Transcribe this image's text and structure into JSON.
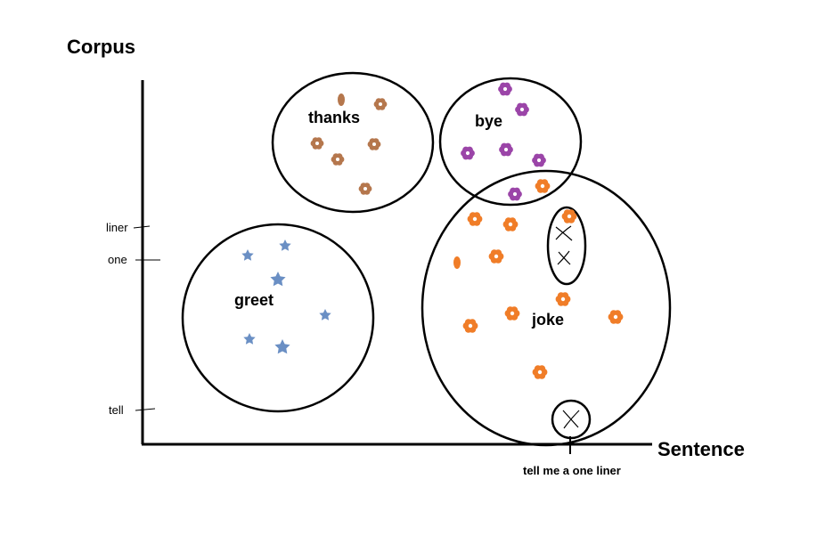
{
  "diagram": {
    "y_axis_title": "Corpus",
    "x_axis_title": "Sentence",
    "y_tick_labels": [
      "liner",
      "one",
      "tell"
    ],
    "x_query_label": "tell me a one liner",
    "clusters": [
      {
        "name": "thanks",
        "label": "thanks",
        "color": "#b5774d",
        "marker": "flower-icon"
      },
      {
        "name": "bye",
        "label": "bye",
        "color": "#9b45a8",
        "marker": "flower-icon"
      },
      {
        "name": "greet",
        "label": "greet",
        "color": "#6a8fc4",
        "marker": "star-icon"
      },
      {
        "name": "joke",
        "label": "joke",
        "color": "#f07d28",
        "marker": "flower-icon"
      }
    ],
    "query_marker": "cross-icon",
    "axis_color": "#000000"
  }
}
